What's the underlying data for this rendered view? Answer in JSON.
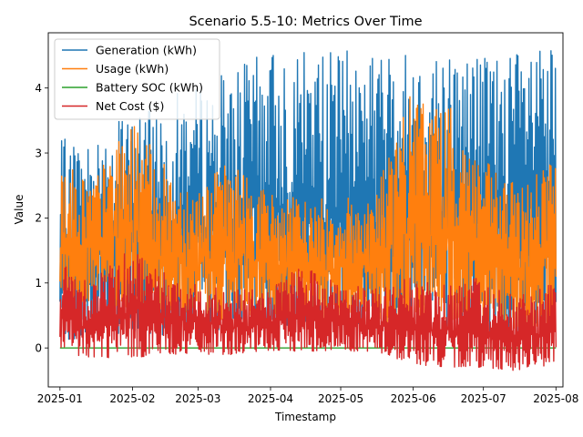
{
  "chart_data": {
    "type": "line",
    "title": "Scenario 5.5-10: Metrics Over Time",
    "xlabel": "Timestamp",
    "ylabel": "Value",
    "x_range": [
      "2024-12-27",
      "2025-08-04"
    ],
    "ylim": [
      -0.6,
      4.85
    ],
    "x_tick_labels": [
      "2025-01",
      "2025-02",
      "2025-03",
      "2025-04",
      "2025-05",
      "2025-06",
      "2025-07",
      "2025-08"
    ],
    "x_tick_dates": [
      "2025-01-01",
      "2025-02-01",
      "2025-03-01",
      "2025-04-01",
      "2025-05-01",
      "2025-06-01",
      "2025-07-01",
      "2025-08-01"
    ],
    "y_ticks": [
      0,
      1,
      2,
      3,
      4
    ],
    "y_tick_labels": [
      "0",
      "1",
      "2",
      "3",
      "4"
    ],
    "grid": false,
    "legend_position": "top-left",
    "x": [
      "2025-01-01",
      "2025-01-15",
      "2025-02-01",
      "2025-02-15",
      "2025-03-01",
      "2025-03-15",
      "2025-04-01",
      "2025-04-15",
      "2025-05-01",
      "2025-05-15",
      "2025-06-01",
      "2025-06-15",
      "2025-07-01",
      "2025-07-15",
      "2025-08-01"
    ],
    "series": [
      {
        "name": "Generation (kWh)",
        "color": "#1f77b4",
        "low": [
          0.1,
          0.15,
          0.2,
          0.2,
          0.25,
          0.3,
          0.3,
          0.3,
          0.35,
          0.35,
          0.3,
          0.3,
          0.25,
          0.2,
          0.2
        ],
        "high": [
          3.2,
          3.3,
          3.6,
          3.9,
          4.0,
          4.3,
          4.58,
          4.58,
          4.58,
          4.58,
          4.58,
          4.58,
          4.58,
          4.58,
          4.58
        ]
      },
      {
        "name": "Usage (kWh)",
        "color": "#ff7f0e",
        "low": [
          0.6,
          0.7,
          0.6,
          0.5,
          0.5,
          0.4,
          0.5,
          0.45,
          0.45,
          0.4,
          0.35,
          0.4,
          0.35,
          0.3,
          0.3
        ],
        "high": [
          2.9,
          2.6,
          3.5,
          2.8,
          2.5,
          2.9,
          2.4,
          2.3,
          2.3,
          2.4,
          4.0,
          3.8,
          2.9,
          2.5,
          3.1
        ]
      },
      {
        "name": "Battery SOC (kWh)",
        "color": "#2ca02c",
        "low": [
          0,
          0,
          0,
          0,
          0,
          0,
          0,
          0,
          0,
          0,
          0,
          0,
          0,
          0,
          0
        ],
        "high": [
          0,
          0,
          0,
          0,
          0,
          0,
          0,
          0,
          0,
          0,
          0,
          0,
          0,
          0,
          0
        ]
      },
      {
        "name": "Net Cost ($)",
        "color": "#d62728",
        "low": [
          -0.1,
          -0.15,
          -0.15,
          -0.1,
          -0.1,
          -0.1,
          -0.05,
          -0.05,
          -0.05,
          -0.05,
          -0.25,
          -0.3,
          -0.3,
          -0.35,
          -0.25
        ],
        "high": [
          1.3,
          1.1,
          1.6,
          1.2,
          1.0,
          0.9,
          0.9,
          1.3,
          1.0,
          0.9,
          1.1,
          1.0,
          1.1,
          0.8,
          1.0
        ]
      }
    ]
  }
}
